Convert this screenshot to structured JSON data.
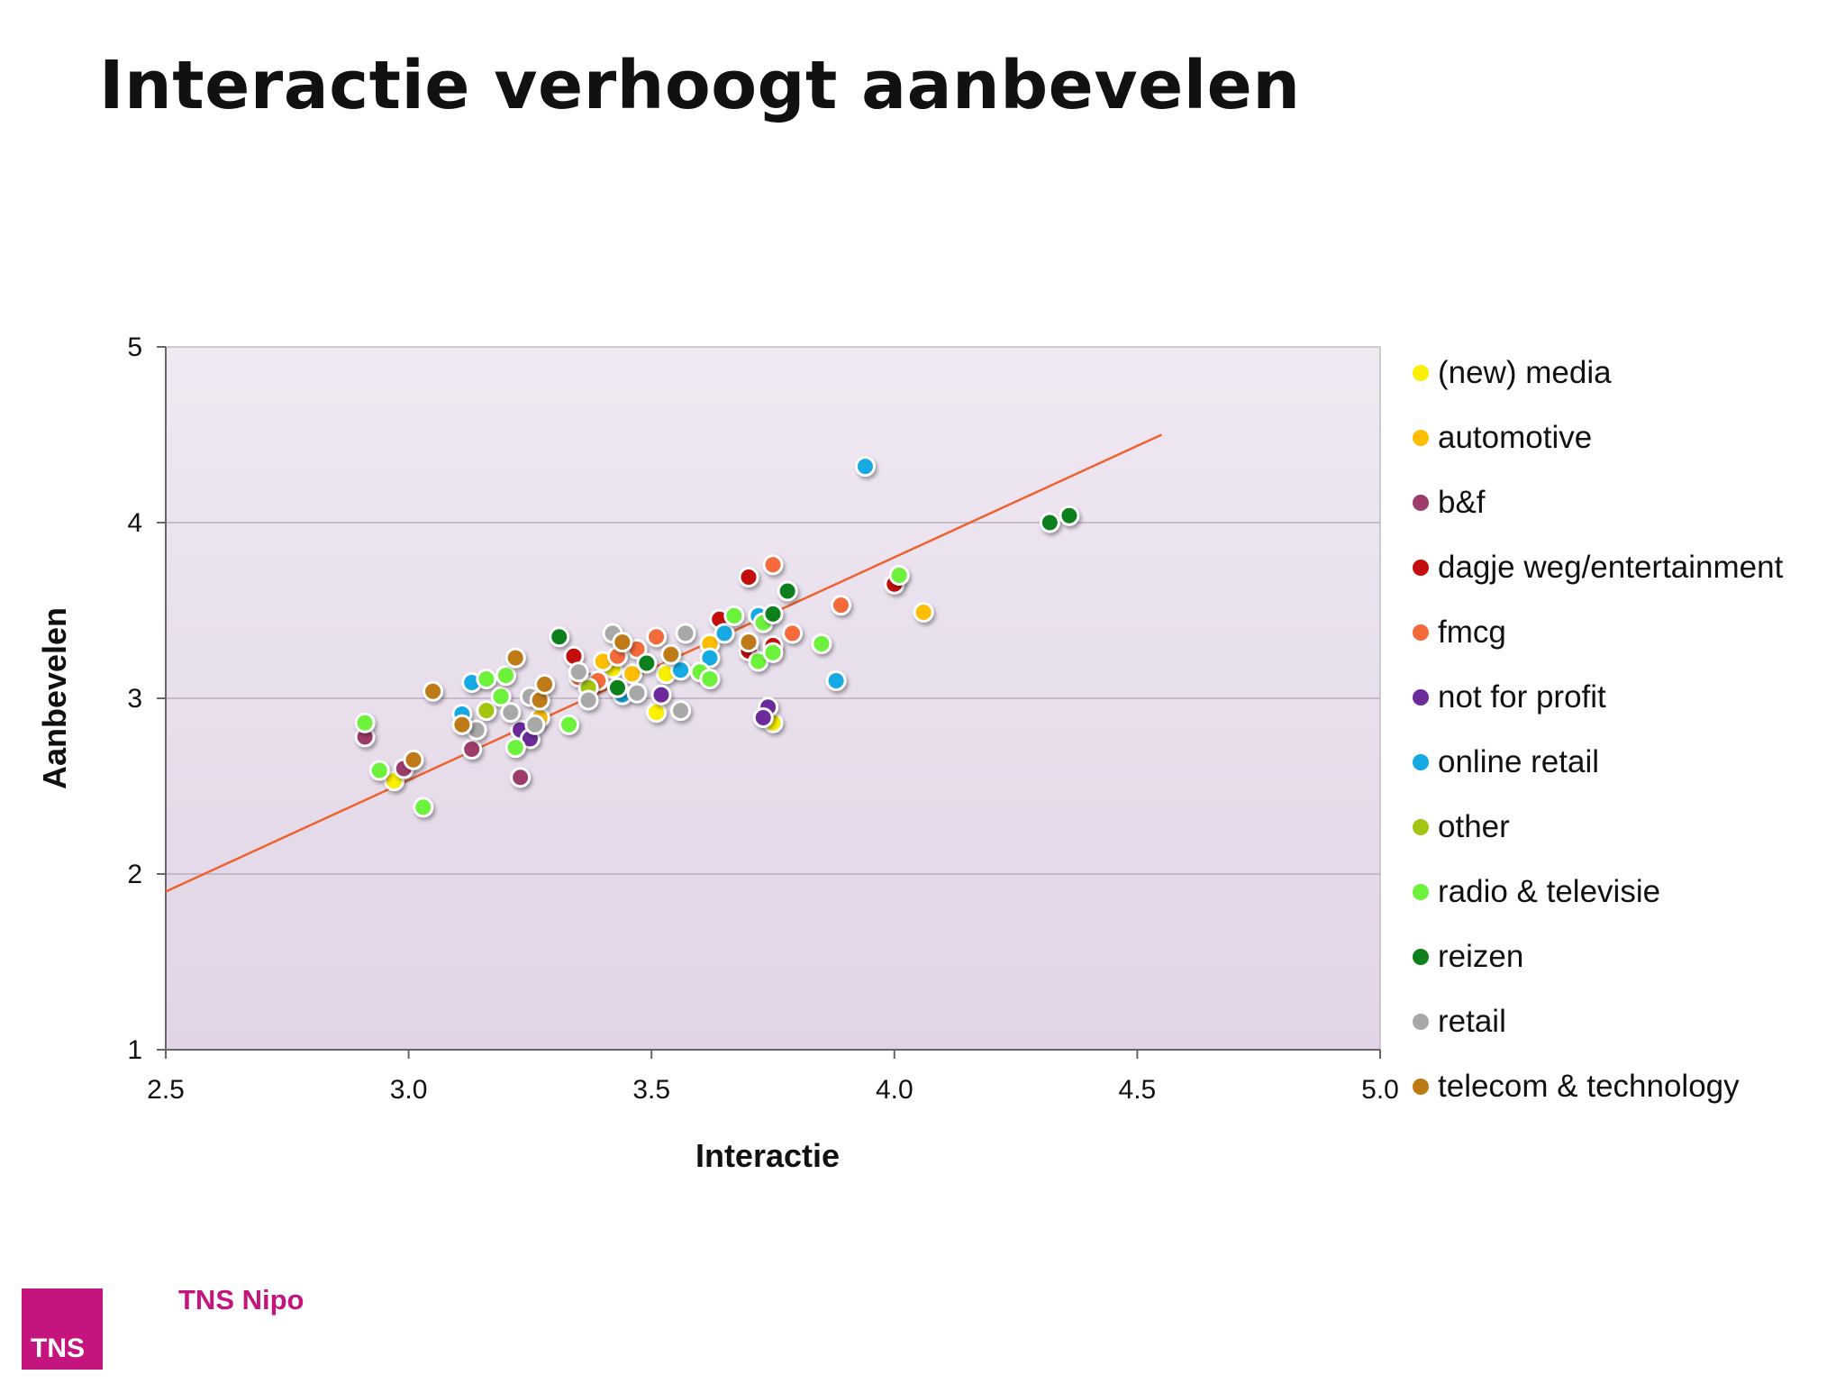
{
  "slide": {
    "title": "Interactie verhoogt aanbevelen"
  },
  "brand": {
    "logo_text": "TNS",
    "name": "TNS Nipo"
  },
  "chart_data": {
    "type": "scatter",
    "title": "Interactie verhoogt aanbevelen",
    "xlabel": "Interactie",
    "ylabel": "Aanbevelen",
    "xlim": [
      2.5,
      5.0
    ],
    "ylim": [
      1,
      5
    ],
    "xticks": [
      "2.5",
      "3.0",
      "3.5",
      "4.0",
      "4.5",
      "5.0"
    ],
    "yticks": [
      "1",
      "2",
      "3",
      "4",
      "5"
    ],
    "grid": true,
    "legend_position": "right",
    "trendline": {
      "color": "#f0612e",
      "from": [
        2.5,
        1.9
      ],
      "to": [
        4.55,
        4.5
      ]
    },
    "series": [
      {
        "name": "(new) media",
        "color": "#fbf000",
        "points": [
          [
            2.97,
            2.53
          ],
          [
            3.51,
            2.92
          ],
          [
            3.75,
            2.86
          ],
          [
            3.53,
            3.14
          ],
          [
            3.42,
            3.17
          ]
        ]
      },
      {
        "name": "automotive",
        "color": "#fdbe00",
        "points": [
          [
            4.06,
            3.49
          ],
          [
            3.62,
            3.31
          ],
          [
            3.27,
            2.89
          ],
          [
            3.46,
            3.14
          ],
          [
            3.4,
            3.21
          ]
        ]
      },
      {
        "name": "b&f",
        "color": "#9d3b6a",
        "points": [
          [
            2.91,
            2.78
          ],
          [
            2.99,
            2.6
          ],
          [
            3.13,
            2.71
          ],
          [
            3.23,
            2.55
          ],
          [
            3.37,
            3.1
          ]
        ]
      },
      {
        "name": "dagje weg/entertainment",
        "color": "#c40d0e",
        "points": [
          [
            3.7,
            3.69
          ],
          [
            4.0,
            3.65
          ],
          [
            3.64,
            3.45
          ],
          [
            3.34,
            3.24
          ],
          [
            3.75,
            3.3
          ],
          [
            3.7,
            3.27
          ]
        ]
      },
      {
        "name": "fmcg",
        "color": "#f46a3a",
        "points": [
          [
            3.75,
            3.76
          ],
          [
            3.89,
            3.53
          ],
          [
            3.79,
            3.37
          ],
          [
            3.51,
            3.35
          ],
          [
            3.47,
            3.28
          ],
          [
            3.43,
            3.24
          ],
          [
            3.39,
            3.1
          ],
          [
            3.35,
            3.12
          ]
        ]
      },
      {
        "name": "not for profit",
        "color": "#6c2b9b",
        "points": [
          [
            3.74,
            2.95
          ],
          [
            3.73,
            2.89
          ],
          [
            3.52,
            3.02
          ],
          [
            3.23,
            2.82
          ],
          [
            3.25,
            2.77
          ]
        ]
      },
      {
        "name": "online retail",
        "color": "#14a9e3",
        "points": [
          [
            3.94,
            4.32
          ],
          [
            3.88,
            3.1
          ],
          [
            3.72,
            3.47
          ],
          [
            3.65,
            3.37
          ],
          [
            3.62,
            3.23
          ],
          [
            3.56,
            3.16
          ],
          [
            3.44,
            3.02
          ],
          [
            3.13,
            3.09
          ],
          [
            3.11,
            2.91
          ]
        ]
      },
      {
        "name": "other",
        "color": "#a3c511",
        "points": [
          [
            3.16,
            2.93
          ],
          [
            3.37,
            3.06
          ]
        ]
      },
      {
        "name": "radio & televisie",
        "color": "#6cf23b",
        "points": [
          [
            2.91,
            2.86
          ],
          [
            2.94,
            2.59
          ],
          [
            3.03,
            2.38
          ],
          [
            3.16,
            3.11
          ],
          [
            3.19,
            3.01
          ],
          [
            3.2,
            3.13
          ],
          [
            3.22,
            2.72
          ],
          [
            3.33,
            2.85
          ],
          [
            3.6,
            3.15
          ],
          [
            3.62,
            3.11
          ],
          [
            3.67,
            3.47
          ],
          [
            3.72,
            3.21
          ],
          [
            3.75,
            3.26
          ],
          [
            3.85,
            3.31
          ],
          [
            4.01,
            3.7
          ],
          [
            3.73,
            3.43
          ]
        ]
      },
      {
        "name": "reizen",
        "color": "#0f7f1c",
        "points": [
          [
            4.32,
            4.0
          ],
          [
            4.36,
            4.04
          ],
          [
            3.78,
            3.61
          ],
          [
            3.75,
            3.48
          ],
          [
            3.31,
            3.35
          ],
          [
            3.49,
            3.2
          ],
          [
            3.43,
            3.06
          ]
        ]
      },
      {
        "name": "retail",
        "color": "#a8a8a8",
        "points": [
          [
            3.14,
            2.82
          ],
          [
            3.21,
            2.92
          ],
          [
            3.25,
            3.01
          ],
          [
            3.35,
            3.15
          ],
          [
            3.37,
            2.99
          ],
          [
            3.42,
            3.37
          ],
          [
            3.47,
            3.03
          ],
          [
            3.56,
            2.93
          ],
          [
            3.57,
            3.37
          ],
          [
            3.26,
            2.85
          ]
        ]
      },
      {
        "name": "telecom & technology",
        "color": "#bd7a12",
        "points": [
          [
            3.05,
            3.04
          ],
          [
            3.01,
            2.65
          ],
          [
            3.11,
            2.85
          ],
          [
            3.22,
            3.23
          ],
          [
            3.27,
            2.99
          ],
          [
            3.28,
            3.08
          ],
          [
            3.44,
            3.32
          ],
          [
            3.54,
            3.25
          ],
          [
            3.7,
            3.32
          ]
        ]
      }
    ]
  }
}
